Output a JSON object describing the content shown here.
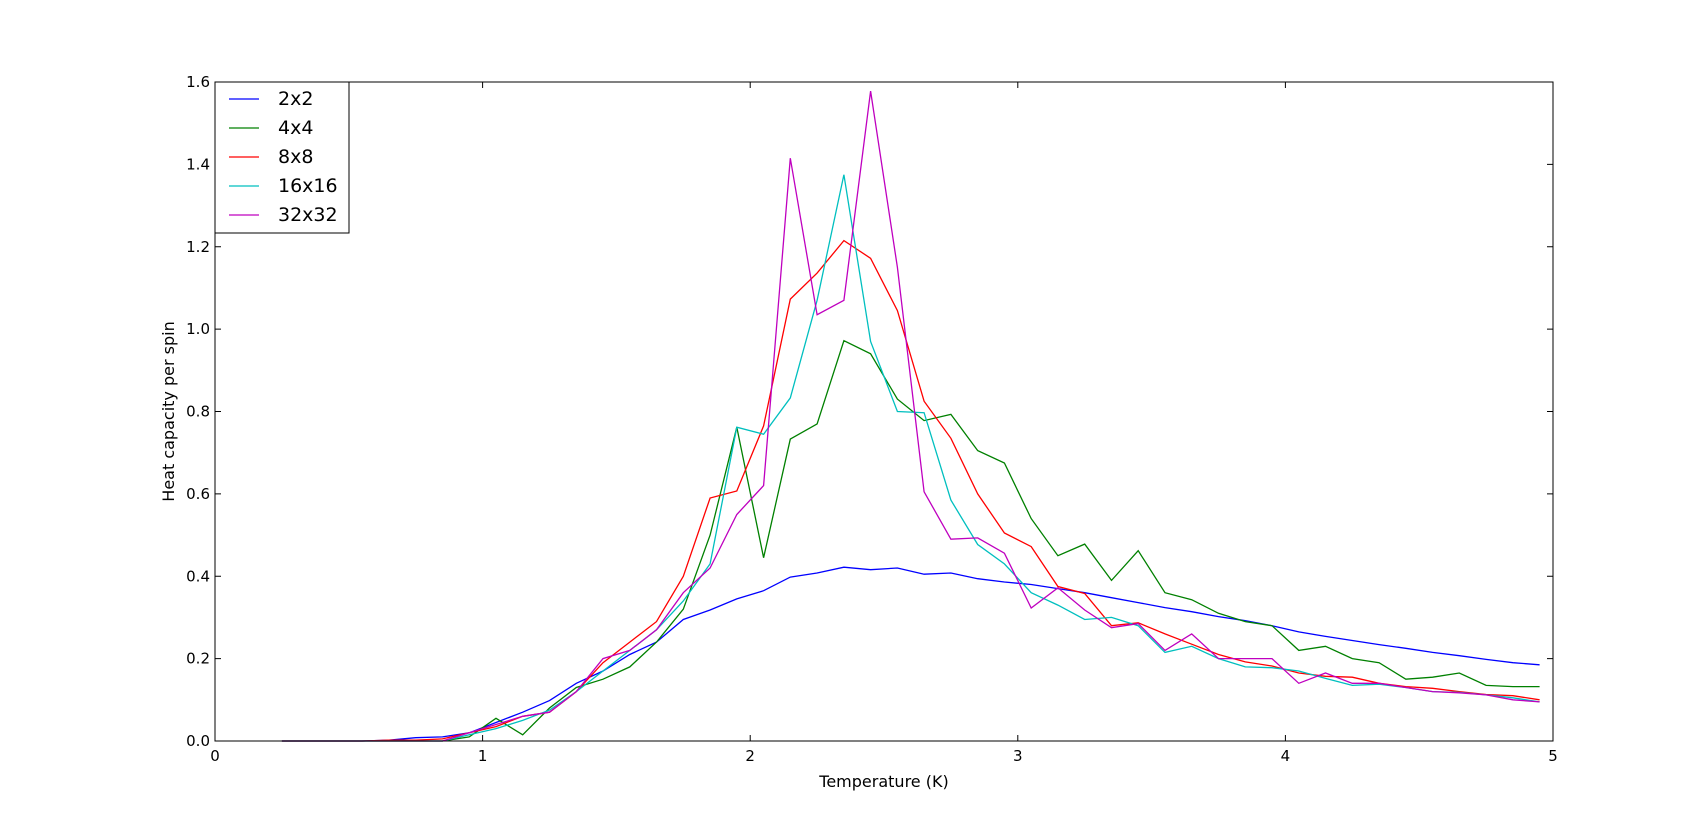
{
  "chart_data": {
    "type": "line",
    "title": "",
    "xlabel": "Temperature (K)",
    "ylabel": "Heat capacity per spin",
    "xlim": [
      0,
      5
    ],
    "ylim": [
      0,
      1.6
    ],
    "xticks": [
      0,
      1,
      2,
      3,
      4,
      5
    ],
    "yticks": [
      0.0,
      0.2,
      0.4,
      0.6,
      0.8,
      1.0,
      1.2,
      1.4,
      1.6
    ],
    "xtick_labels": [
      "0",
      "1",
      "2",
      "3",
      "4",
      "5"
    ],
    "ytick_labels": [
      "0.0",
      "0.2",
      "0.4",
      "0.6",
      "0.8",
      "1.0",
      "1.2",
      "1.4",
      "1.6"
    ],
    "grid": false,
    "legend_position": "top-left",
    "x": [
      0.25,
      0.35,
      0.45,
      0.55,
      0.65,
      0.75,
      0.85,
      0.95,
      1.05,
      1.15,
      1.25,
      1.35,
      1.45,
      1.55,
      1.65,
      1.75,
      1.85,
      1.95,
      2.05,
      2.15,
      2.25,
      2.35,
      2.45,
      2.55,
      2.65,
      2.75,
      2.85,
      2.95,
      3.05,
      3.15,
      3.25,
      3.35,
      3.45,
      3.55,
      3.65,
      3.75,
      3.85,
      3.95,
      4.05,
      4.15,
      4.25,
      4.35,
      4.45,
      4.55,
      4.65,
      4.75,
      4.85,
      4.95
    ],
    "series": [
      {
        "name": "2x2",
        "color": "#0000ff",
        "values": [
          0.0,
          0.0,
          0.0,
          0.0,
          0.002,
          0.008,
          0.01,
          0.02,
          0.045,
          0.07,
          0.098,
          0.14,
          0.17,
          0.21,
          0.24,
          0.295,
          0.318,
          0.345,
          0.365,
          0.398,
          0.408,
          0.422,
          0.416,
          0.42,
          0.405,
          0.408,
          0.394,
          0.386,
          0.38,
          0.37,
          0.36,
          0.348,
          0.336,
          0.324,
          0.314,
          0.302,
          0.292,
          0.28,
          0.265,
          0.254,
          0.244,
          0.234,
          0.225,
          0.215,
          0.207,
          0.198,
          0.19,
          0.185
        ]
      },
      {
        "name": "4x4",
        "color": "#008000",
        "values": [
          0.0,
          0.0,
          0.0,
          0.0,
          0.0,
          0.0,
          0.0,
          0.01,
          0.055,
          0.015,
          0.08,
          0.13,
          0.15,
          0.18,
          0.24,
          0.32,
          0.5,
          0.762,
          0.445,
          0.733,
          0.77,
          0.972,
          0.94,
          0.83,
          0.778,
          0.793,
          0.705,
          0.675,
          0.54,
          0.45,
          0.478,
          0.39,
          0.462,
          0.36,
          0.343,
          0.31,
          0.29,
          0.28,
          0.22,
          0.23,
          0.2,
          0.19,
          0.15,
          0.155,
          0.165,
          0.135,
          0.132,
          0.132
        ]
      },
      {
        "name": "8x8",
        "color": "#ff0000",
        "values": [
          0.0,
          0.0,
          0.0,
          0.0,
          0.002,
          0.002,
          0.005,
          0.02,
          0.035,
          0.06,
          0.07,
          0.12,
          0.19,
          0.24,
          0.29,
          0.4,
          0.59,
          0.607,
          0.765,
          1.073,
          1.136,
          1.215,
          1.172,
          1.045,
          0.825,
          0.735,
          0.6,
          0.505,
          0.472,
          0.375,
          0.358,
          0.28,
          0.287,
          0.26,
          0.235,
          0.21,
          0.192,
          0.182,
          0.165,
          0.157,
          0.155,
          0.14,
          0.132,
          0.128,
          0.12,
          0.113,
          0.11,
          0.1
        ]
      },
      {
        "name": "16x16",
        "color": "#00bfbf",
        "values": [
          0.0,
          0.0,
          0.0,
          0.0,
          0.0,
          0.0,
          0.0,
          0.015,
          0.03,
          0.05,
          0.075,
          0.12,
          0.17,
          0.22,
          0.27,
          0.34,
          0.43,
          0.762,
          0.745,
          0.833,
          1.07,
          1.375,
          0.97,
          0.8,
          0.797,
          0.585,
          0.477,
          0.43,
          0.36,
          0.33,
          0.295,
          0.3,
          0.28,
          0.215,
          0.23,
          0.2,
          0.18,
          0.178,
          0.17,
          0.152,
          0.135,
          0.138,
          0.13,
          0.12,
          0.118,
          0.112,
          0.105,
          0.095
        ]
      },
      {
        "name": "32x32",
        "color": "#bf00bf",
        "values": [
          0.0,
          0.0,
          0.0,
          0.0,
          0.0,
          0.0,
          0.0,
          0.02,
          0.04,
          0.06,
          0.07,
          0.12,
          0.2,
          0.22,
          0.27,
          0.36,
          0.42,
          0.55,
          0.62,
          1.415,
          1.035,
          1.07,
          1.578,
          1.15,
          0.605,
          0.49,
          0.493,
          0.456,
          0.323,
          0.372,
          0.318,
          0.275,
          0.285,
          0.22,
          0.26,
          0.2,
          0.2,
          0.2,
          0.14,
          0.165,
          0.14,
          0.14,
          0.13,
          0.12,
          0.117,
          0.112,
          0.1,
          0.095
        ]
      }
    ]
  }
}
